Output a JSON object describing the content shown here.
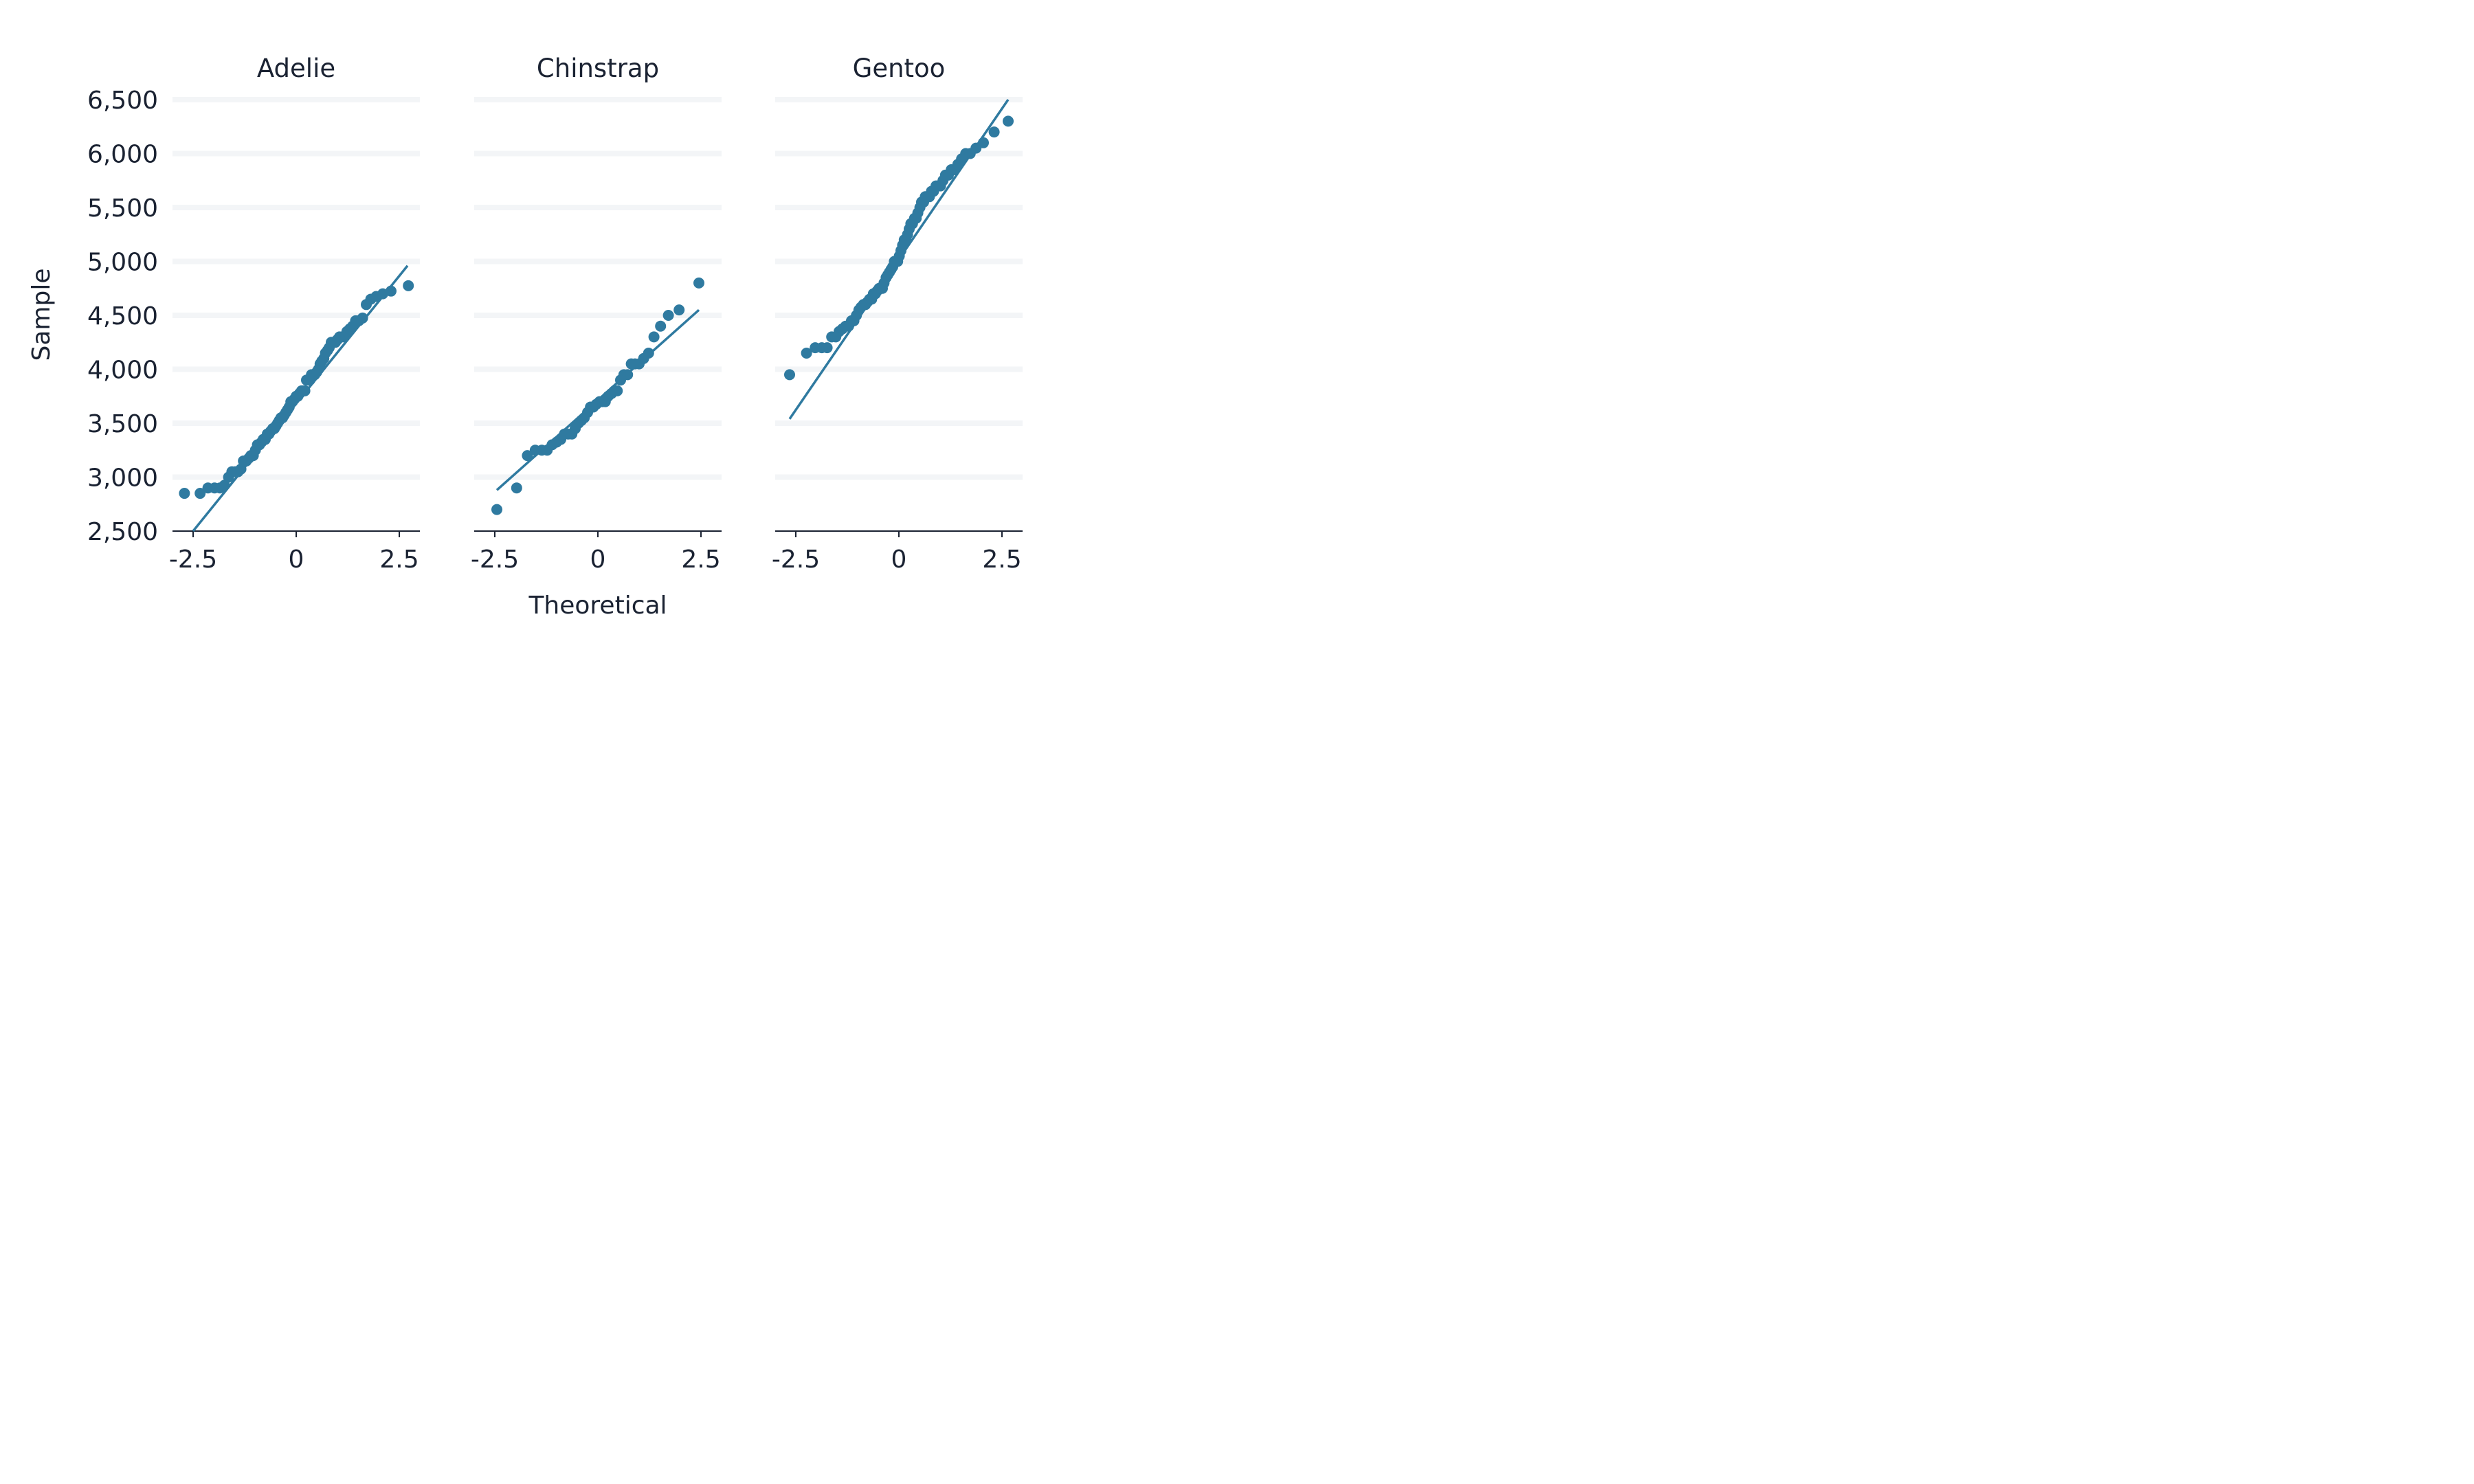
{
  "chart_data": {
    "type": "scatter",
    "xlabel": "Theoretical",
    "ylabel": "Sample",
    "ylim": [
      2500,
      6500
    ],
    "y_ticks": [
      2500,
      3000,
      3500,
      4000,
      4500,
      5000,
      5500,
      6000,
      6500
    ],
    "y_tick_labels": [
      "2,500",
      "3,000",
      "3,500",
      "4,000",
      "4,500",
      "5,000",
      "5,500",
      "6,000",
      "6,500"
    ],
    "x_ticks": [
      -2.5,
      0,
      2.5
    ],
    "x_tick_labels": [
      "-2.5",
      "0",
      "2.5"
    ],
    "grid": "horizontal",
    "colors": {
      "points": "#2f7aa0",
      "line": "#2f7aa0",
      "grid": "#f3f5f7",
      "axis": "#1a2232"
    },
    "panels": [
      {
        "title": "Adelie",
        "xlim": [
          -3,
          3
        ],
        "line": {
          "x": [
            -2.5,
            2.7
          ],
          "y": [
            2500,
            4960
          ]
        },
        "points": [
          [
            -2.71,
            2850
          ],
          [
            -2.33,
            2850
          ],
          [
            -2.14,
            2900
          ],
          [
            -1.98,
            2900
          ],
          [
            -1.85,
            2900
          ],
          [
            -1.74,
            2925
          ],
          [
            -1.64,
            3000
          ],
          [
            -1.56,
            3050
          ],
          [
            -1.48,
            3050
          ],
          [
            -1.41,
            3050
          ],
          [
            -1.34,
            3075
          ],
          [
            -1.28,
            3150
          ],
          [
            -1.21,
            3150
          ],
          [
            -1.15,
            3175
          ],
          [
            -1.1,
            3200
          ],
          [
            -1.04,
            3200
          ],
          [
            -0.99,
            3250
          ],
          [
            -0.94,
            3300
          ],
          [
            -0.89,
            3300
          ],
          [
            -0.84,
            3325
          ],
          [
            -0.8,
            3350
          ],
          [
            -0.75,
            3350
          ],
          [
            -0.7,
            3400
          ],
          [
            -0.66,
            3400
          ],
          [
            -0.62,
            3425
          ],
          [
            -0.57,
            3450
          ],
          [
            -0.53,
            3450
          ],
          [
            -0.49,
            3475
          ],
          [
            -0.45,
            3500
          ],
          [
            -0.41,
            3525
          ],
          [
            -0.37,
            3550
          ],
          [
            -0.33,
            3550
          ],
          [
            -0.29,
            3575
          ],
          [
            -0.25,
            3600
          ],
          [
            -0.21,
            3625
          ],
          [
            -0.17,
            3650
          ],
          [
            -0.13,
            3700
          ],
          [
            -0.09,
            3700
          ],
          [
            -0.04,
            3725
          ],
          [
            0.0,
            3750
          ],
          [
            0.04,
            3750
          ],
          [
            0.08,
            3775
          ],
          [
            0.13,
            3800
          ],
          [
            0.17,
            3800
          ],
          [
            0.21,
            3800
          ],
          [
            0.25,
            3900
          ],
          [
            0.29,
            3900
          ],
          [
            0.33,
            3900
          ],
          [
            0.37,
            3950
          ],
          [
            0.41,
            3950
          ],
          [
            0.45,
            3950
          ],
          [
            0.5,
            3975
          ],
          [
            0.54,
            4000
          ],
          [
            0.58,
            4050
          ],
          [
            0.62,
            4075
          ],
          [
            0.67,
            4100
          ],
          [
            0.71,
            4150
          ],
          [
            0.76,
            4175
          ],
          [
            0.8,
            4200
          ],
          [
            0.85,
            4250
          ],
          [
            0.9,
            4250
          ],
          [
            0.95,
            4250
          ],
          [
            1.0,
            4275
          ],
          [
            1.05,
            4300
          ],
          [
            1.11,
            4300
          ],
          [
            1.17,
            4300
          ],
          [
            1.23,
            4350
          ],
          [
            1.3,
            4375
          ],
          [
            1.37,
            4400
          ],
          [
            1.44,
            4450
          ],
          [
            1.52,
            4450
          ],
          [
            1.61,
            4475
          ],
          [
            1.7,
            4600
          ],
          [
            1.81,
            4650
          ],
          [
            1.94,
            4675
          ],
          [
            2.1,
            4700
          ],
          [
            2.3,
            4725
          ],
          [
            2.72,
            4775
          ]
        ]
      },
      {
        "title": "Chinstrap",
        "xlim": [
          -3,
          3
        ],
        "line": {
          "x": [
            -2.45,
            2.45
          ],
          "y": [
            2880,
            4550
          ]
        },
        "points": [
          [
            -2.45,
            2700
          ],
          [
            -1.97,
            2900
          ],
          [
            -1.71,
            3200
          ],
          [
            -1.52,
            3250
          ],
          [
            -1.36,
            3250
          ],
          [
            -1.23,
            3250
          ],
          [
            -1.11,
            3300
          ],
          [
            -1.0,
            3325
          ],
          [
            -0.9,
            3350
          ],
          [
            -0.81,
            3400
          ],
          [
            -0.72,
            3400
          ],
          [
            -0.63,
            3400
          ],
          [
            -0.55,
            3450
          ],
          [
            -0.47,
            3500
          ],
          [
            -0.4,
            3525
          ],
          [
            -0.33,
            3550
          ],
          [
            -0.25,
            3600
          ],
          [
            -0.18,
            3650
          ],
          [
            -0.11,
            3650
          ],
          [
            -0.04,
            3675
          ],
          [
            0.04,
            3700
          ],
          [
            0.11,
            3700
          ],
          [
            0.18,
            3700
          ],
          [
            0.25,
            3750
          ],
          [
            0.33,
            3775
          ],
          [
            0.4,
            3800
          ],
          [
            0.47,
            3800
          ],
          [
            0.55,
            3900
          ],
          [
            0.63,
            3950
          ],
          [
            0.72,
            3950
          ],
          [
            0.81,
            4050
          ],
          [
            0.9,
            4050
          ],
          [
            1.0,
            4050
          ],
          [
            1.11,
            4100
          ],
          [
            1.23,
            4150
          ],
          [
            1.36,
            4300
          ],
          [
            1.52,
            4400
          ],
          [
            1.71,
            4500
          ],
          [
            1.97,
            4550
          ],
          [
            2.45,
            4800
          ]
        ]
      },
      {
        "title": "Gentoo",
        "xlim": [
          -3,
          3
        ],
        "line": {
          "x": [
            -2.65,
            2.65
          ],
          "y": [
            3540,
            6500
          ]
        },
        "points": [
          [
            -2.65,
            3950
          ],
          [
            -2.24,
            4150
          ],
          [
            -2.03,
            4200
          ],
          [
            -1.87,
            4200
          ],
          [
            -1.74,
            4200
          ],
          [
            -1.63,
            4300
          ],
          [
            -1.53,
            4300
          ],
          [
            -1.45,
            4350
          ],
          [
            -1.37,
            4375
          ],
          [
            -1.29,
            4400
          ],
          [
            -1.22,
            4400
          ],
          [
            -1.15,
            4450
          ],
          [
            -1.09,
            4450
          ],
          [
            -1.03,
            4500
          ],
          [
            -0.97,
            4550
          ],
          [
            -0.92,
            4575
          ],
          [
            -0.86,
            4600
          ],
          [
            -0.81,
            4600
          ],
          [
            -0.76,
            4625
          ],
          [
            -0.71,
            4650
          ],
          [
            -0.66,
            4650
          ],
          [
            -0.62,
            4700
          ],
          [
            -0.57,
            4700
          ],
          [
            -0.53,
            4725
          ],
          [
            -0.48,
            4750
          ],
          [
            -0.44,
            4750
          ],
          [
            -0.4,
            4750
          ],
          [
            -0.36,
            4800
          ],
          [
            -0.31,
            4850
          ],
          [
            -0.27,
            4875
          ],
          [
            -0.23,
            4900
          ],
          [
            -0.19,
            4925
          ],
          [
            -0.15,
            4950
          ],
          [
            -0.11,
            5000
          ],
          [
            -0.07,
            5000
          ],
          [
            -0.03,
            5000
          ],
          [
            0.01,
            5050
          ],
          [
            0.05,
            5100
          ],
          [
            0.09,
            5150
          ],
          [
            0.13,
            5200
          ],
          [
            0.17,
            5200
          ],
          [
            0.21,
            5250
          ],
          [
            0.25,
            5300
          ],
          [
            0.29,
            5350
          ],
          [
            0.33,
            5350
          ],
          [
            0.38,
            5400
          ],
          [
            0.42,
            5400
          ],
          [
            0.46,
            5450
          ],
          [
            0.51,
            5500
          ],
          [
            0.55,
            5550
          ],
          [
            0.6,
            5550
          ],
          [
            0.64,
            5600
          ],
          [
            0.69,
            5600
          ],
          [
            0.74,
            5600
          ],
          [
            0.79,
            5650
          ],
          [
            0.84,
            5650
          ],
          [
            0.9,
            5700
          ],
          [
            0.95,
            5700
          ],
          [
            1.01,
            5700
          ],
          [
            1.07,
            5750
          ],
          [
            1.13,
            5800
          ],
          [
            1.2,
            5800
          ],
          [
            1.27,
            5850
          ],
          [
            1.35,
            5850
          ],
          [
            1.43,
            5900
          ],
          [
            1.52,
            5950
          ],
          [
            1.62,
            6000
          ],
          [
            1.73,
            6000
          ],
          [
            1.87,
            6050
          ],
          [
            2.05,
            6100
          ],
          [
            2.31,
            6200
          ],
          [
            2.65,
            6300
          ]
        ]
      }
    ]
  }
}
